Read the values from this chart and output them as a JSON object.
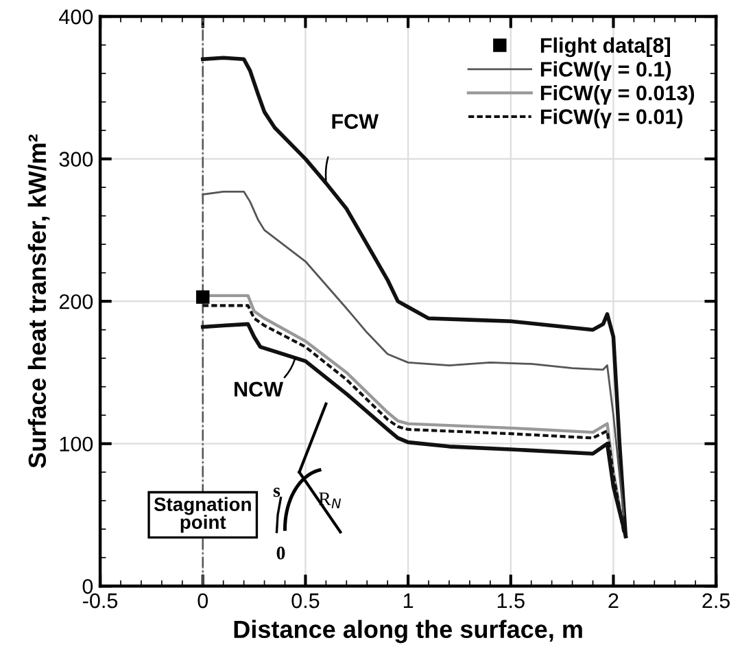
{
  "chart_data": {
    "type": "line",
    "xlabel": "Distance along the surface, m",
    "ylabel": "Surface heat transfer, kW/m²",
    "xlim": [
      -0.5,
      2.5
    ],
    "xticks": [
      -0.5,
      0,
      0.5,
      1,
      1.5,
      2,
      2.5
    ],
    "ylim": [
      0,
      400
    ],
    "yticks": [
      0,
      100,
      200,
      300,
      400
    ],
    "grid": true,
    "legend": "top right",
    "ref_lines": [
      {
        "axis": "x",
        "value": 0,
        "color": "#555555",
        "line_style": "dashdot"
      }
    ],
    "series": [
      {
        "color": "#111111",
        "x": [
          0,
          0.1,
          0.2,
          0.23,
          0.27,
          0.3,
          0.35,
          0.5,
          0.6,
          0.7,
          0.8,
          0.9,
          0.95,
          1.0,
          1.1,
          1.3,
          1.5,
          1.7,
          1.9,
          1.95,
          1.97,
          2.0,
          2.03,
          2.06
        ],
        "values": [
          370,
          371,
          370,
          362,
          345,
          333,
          322,
          300,
          283,
          265,
          240,
          215,
          200,
          196,
          188,
          187,
          186,
          183,
          180,
          184,
          191,
          175,
          100,
          35
        ]
      },
      {
        "type": "scatter",
        "name": "Flight data[8]",
        "color": "#000000",
        "marker": "square",
        "x": [
          0
        ],
        "values": [
          203
        ]
      },
      {
        "name": "FiCW(γ = 0.1)",
        "color": "#555555",
        "x": [
          0,
          0.1,
          0.2,
          0.23,
          0.27,
          0.3,
          0.5,
          0.7,
          0.8,
          0.9,
          0.95,
          1.0,
          1.2,
          1.4,
          1.6,
          1.8,
          1.95,
          1.97,
          2.0,
          2.05
        ],
        "values": [
          275,
          277,
          277,
          270,
          257,
          250,
          228,
          195,
          178,
          163,
          160,
          157,
          155,
          157,
          156,
          153,
          152,
          155,
          120,
          50
        ]
      },
      {
        "name": "FiCW(γ = 0.013)",
        "color": "#999999",
        "x": [
          0,
          0.1,
          0.22,
          0.25,
          0.3,
          0.5,
          0.7,
          0.9,
          0.95,
          1.0,
          1.5,
          1.9,
          1.97,
          2.0,
          2.05
        ],
        "values": [
          204,
          204,
          204,
          193,
          188,
          172,
          150,
          122,
          116,
          114,
          111,
          108,
          114,
          80,
          40
        ]
      },
      {
        "name": "FiCW(γ = 0.01)",
        "color": "#111111",
        "line_style": "dashed",
        "x": [
          0,
          0.1,
          0.22,
          0.25,
          0.3,
          0.5,
          0.7,
          0.9,
          0.95,
          1.0,
          1.5,
          1.9,
          1.97,
          2.0,
          2.05
        ],
        "values": [
          197,
          197,
          197,
          188,
          183,
          168,
          145,
          117,
          112,
          110,
          107,
          104,
          109,
          78,
          38
        ]
      },
      {
        "color": "#111111",
        "x": [
          0,
          0.1,
          0.22,
          0.25,
          0.28,
          0.5,
          0.7,
          0.9,
          0.95,
          1.0,
          1.2,
          1.5,
          1.9,
          1.97,
          2.0,
          2.06
        ],
        "values": [
          182,
          183,
          184,
          175,
          168,
          158,
          135,
          110,
          104,
          101,
          98,
          96,
          93,
          100,
          70,
          35
        ]
      }
    ],
    "annotations": [
      {
        "text": "FCW",
        "x": 0.6,
        "y": 285
      },
      {
        "text": "NCW",
        "x": 0.45,
        "y": 160
      },
      "Stagnation\npoint",
      "s",
      "0",
      "R$_{N}$"
    ]
  }
}
